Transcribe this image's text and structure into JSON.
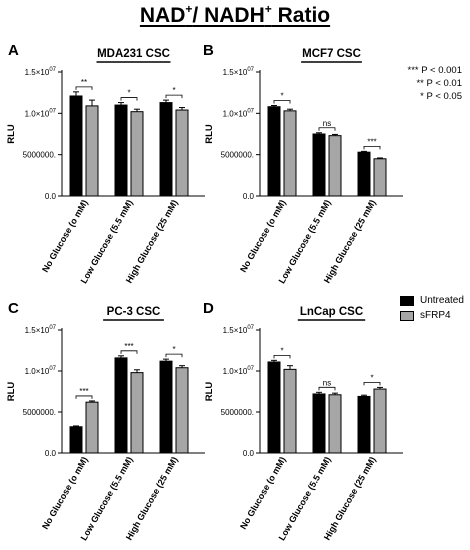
{
  "title": {
    "prefix": "NAD",
    "sup1": "+",
    "mid": "/ NADH",
    "sup2": "+",
    "suffix": " Ratio"
  },
  "significance_legend": [
    "*** P < 0.001",
    "** P < 0.01",
    "* P < 0.05"
  ],
  "legend": [
    {
      "label": "Untreated",
      "color": "#000000"
    },
    {
      "label": "sFRP4",
      "color": "#a6a6a6"
    }
  ],
  "chart_data": [
    {
      "type": "bar",
      "panel": "A",
      "title": "MDA231 CSC",
      "ylabel": "RLU",
      "categories": [
        "No Glucose (o mM)",
        "Low Glucose (5.5 mM)",
        "High Glucose (25 mM)"
      ],
      "yticks": [
        {
          "v": 0,
          "t": "0.0"
        },
        {
          "v": 5000000,
          "t": "5000000."
        },
        {
          "v": 10000000,
          "t": "1.0×10",
          "e": "07"
        },
        {
          "v": 15000000,
          "t": "1.5×10",
          "e": "07"
        }
      ],
      "ylim": [
        0,
        15000000
      ],
      "series": [
        {
          "name": "Untreated",
          "color": "#000000",
          "values": [
            12100000,
            11000000,
            11300000
          ],
          "errors": [
            500000,
            300000,
            300000
          ]
        },
        {
          "name": "sFRP4",
          "color": "#a6a6a6",
          "values": [
            10900000,
            10200000,
            10400000
          ],
          "errors": [
            700000,
            300000,
            300000
          ]
        }
      ],
      "significance": [
        "**",
        "*",
        "*"
      ]
    },
    {
      "type": "bar",
      "panel": "B",
      "title": "MCF7 CSC",
      "ylabel": "RLU",
      "categories": [
        "No Glucose (o mM)",
        "Low Glucose (5.5 mM)",
        "High Glucose (25 mM)"
      ],
      "yticks": [
        {
          "v": 0,
          "t": "0.0"
        },
        {
          "v": 5000000,
          "t": "5000000."
        },
        {
          "v": 10000000,
          "t": "1.0×10",
          "e": "07"
        },
        {
          "v": 15000000,
          "t": "1.5×10",
          "e": "07"
        }
      ],
      "ylim": [
        0,
        15000000
      ],
      "series": [
        {
          "name": "Untreated",
          "color": "#000000",
          "values": [
            10800000,
            7500000,
            5300000
          ],
          "errors": [
            150000,
            150000,
            100000
          ]
        },
        {
          "name": "sFRP4",
          "color": "#a6a6a6",
          "values": [
            10300000,
            7300000,
            4500000
          ],
          "errors": [
            200000,
            150000,
            100000
          ]
        }
      ],
      "significance": [
        "*",
        "ns",
        "***"
      ]
    },
    {
      "type": "bar",
      "panel": "C",
      "title": "PC-3 CSC",
      "ylabel": "RLU",
      "categories": [
        "No Glucose (o mM)",
        "Low Glucose (5.5 mM)",
        "High Glucose (25 mM)"
      ],
      "yticks": [
        {
          "v": 0,
          "t": "0.0"
        },
        {
          "v": 5000000,
          "t": "5000000."
        },
        {
          "v": 10000000,
          "t": "1.0×10",
          "e": "07"
        },
        {
          "v": 15000000,
          "t": "1.5×10",
          "e": "07"
        }
      ],
      "ylim": [
        0,
        15000000
      ],
      "series": [
        {
          "name": "Untreated",
          "color": "#000000",
          "values": [
            3200000,
            11600000,
            11200000
          ],
          "errors": [
            100000,
            250000,
            250000
          ]
        },
        {
          "name": "sFRP4",
          "color": "#a6a6a6",
          "values": [
            6200000,
            9800000,
            10400000
          ],
          "errors": [
            150000,
            350000,
            250000
          ]
        }
      ],
      "significance": [
        "***",
        "***",
        "*"
      ]
    },
    {
      "type": "bar",
      "panel": "D",
      "title": "LnCap CSC",
      "ylabel": "RLU",
      "categories": [
        "No Glucose (o mM)",
        "Low Glucose (5.5 mM)",
        "High Glucose (25 mM)"
      ],
      "yticks": [
        {
          "v": 0,
          "t": "0.0"
        },
        {
          "v": 5000000,
          "t": "5000000."
        },
        {
          "v": 10000000,
          "t": "1.0×10",
          "e": "07"
        },
        {
          "v": 15000000,
          "t": "1.5×10",
          "e": "07"
        }
      ],
      "ylim": [
        0,
        15000000
      ],
      "series": [
        {
          "name": "Untreated",
          "color": "#000000",
          "values": [
            11100000,
            7200000,
            6900000
          ],
          "errors": [
            200000,
            200000,
            150000
          ]
        },
        {
          "name": "sFRP4",
          "color": "#a6a6a6",
          "values": [
            10200000,
            7100000,
            7800000
          ],
          "errors": [
            450000,
            200000,
            200000
          ]
        }
      ],
      "significance": [
        "*",
        "ns",
        "*"
      ]
    }
  ]
}
